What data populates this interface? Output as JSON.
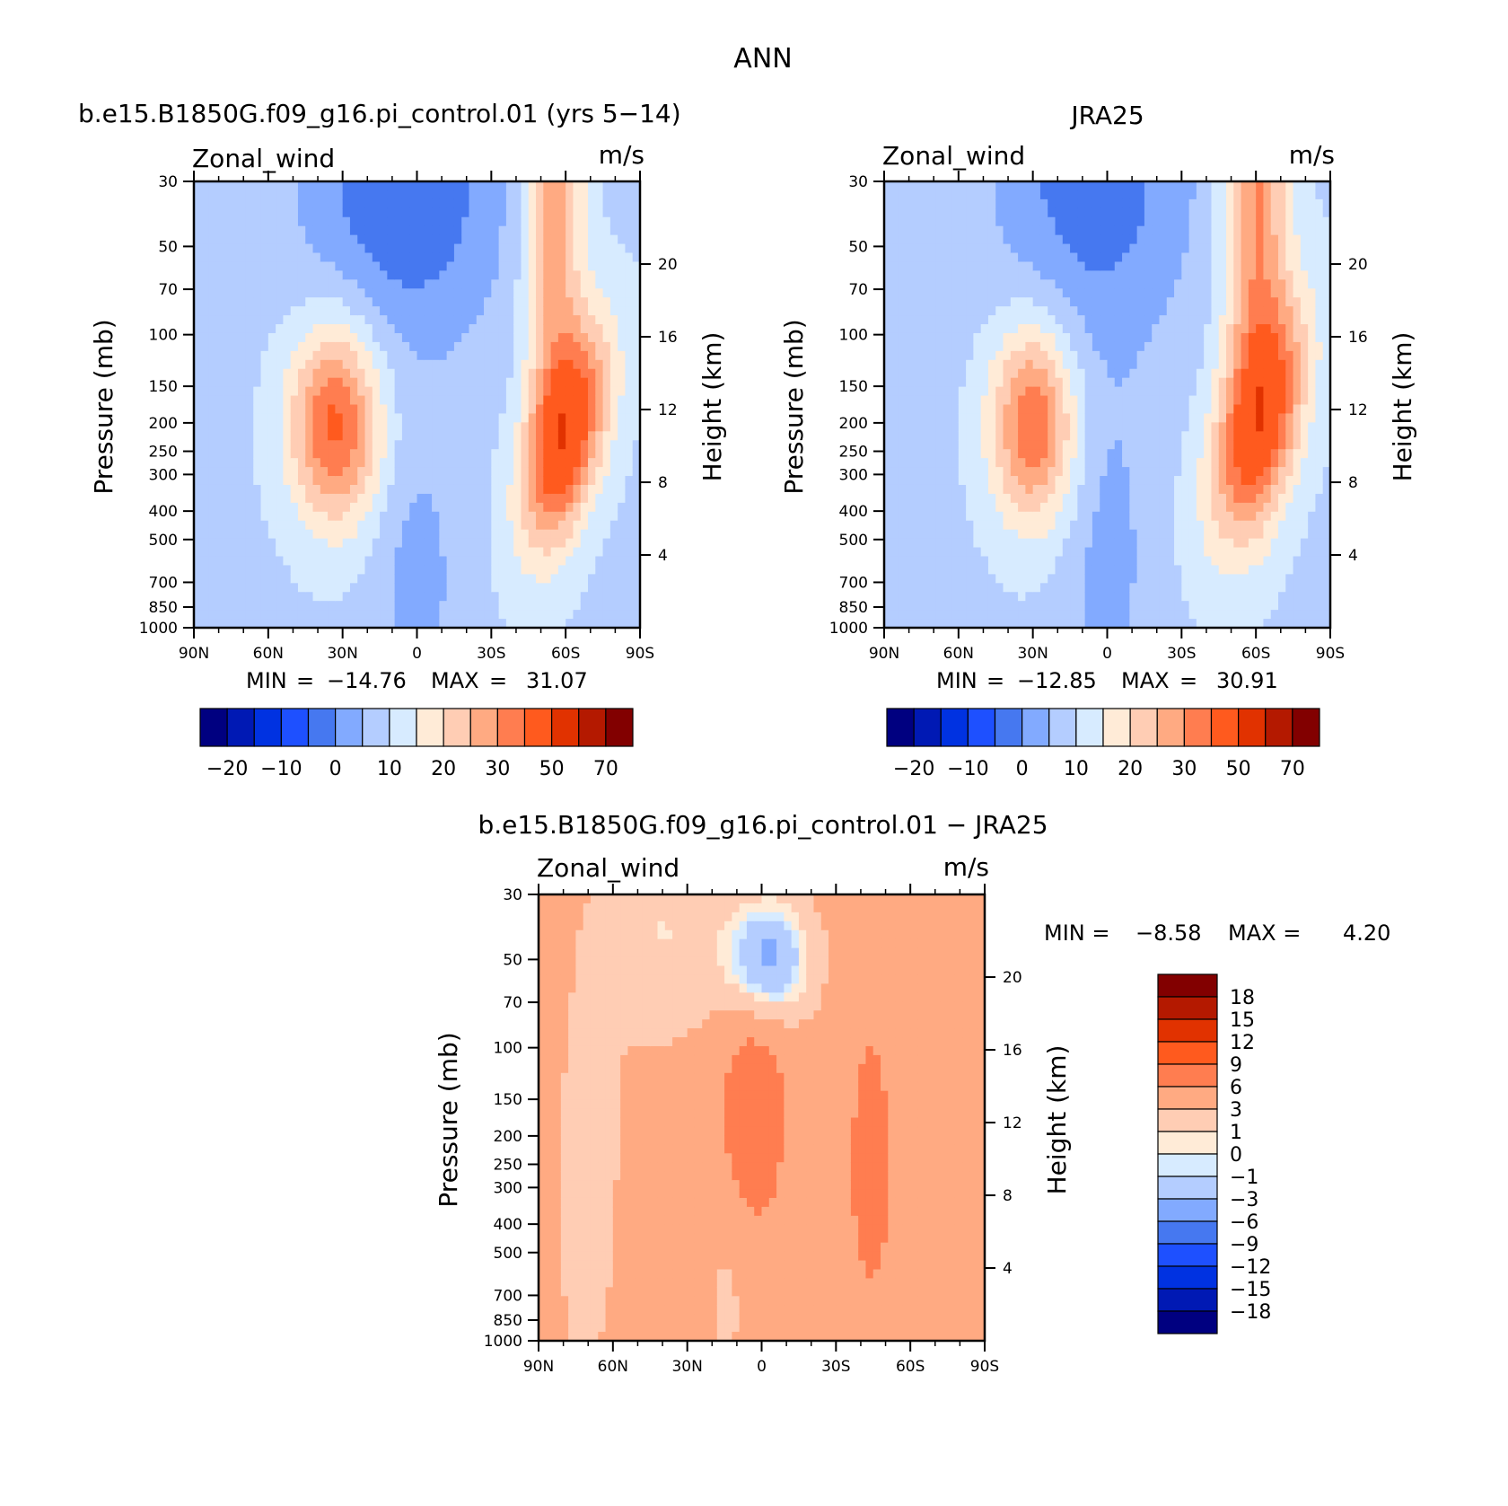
{
  "chart_data": {
    "type": "heatmap",
    "title": "ANN",
    "panels": [
      {
        "id": "model",
        "subtitle": "b.e15.B1850G.f09_g16.pi_control.01 (yrs 5−14)",
        "left_string": "Zonal_wind",
        "right_string": "m/s",
        "ylabel": "Pressure (mb)",
        "ylabel_right": "Height (km)",
        "min_label": "MIN",
        "min_value": "−14.76",
        "max_label": "MAX",
        "max_value": "31.07",
        "jets": [
          {
            "lat": 33,
            "p": 200,
            "speed": 28,
            "slat": 13,
            "sz": 0.55,
            "tilt": 0
          },
          {
            "lat": -45,
            "p": 220,
            "speed": 31,
            "slat": 11,
            "sz": 0.6,
            "tilt": -10
          },
          {
            "lat": -55,
            "p": 30,
            "speed": 22,
            "slat": 8,
            "sz": 1.3,
            "tilt": 0
          },
          {
            "lat": 5,
            "p": 30,
            "speed": -14,
            "slat": 28,
            "sz": 0.9,
            "tilt": 0
          },
          {
            "lat": 0,
            "p": 700,
            "speed": -6,
            "slat": 12,
            "sz": 0.8,
            "tilt": 0
          }
        ]
      },
      {
        "id": "obs",
        "subtitle": "JRA25",
        "left_string": "Zonal_wind",
        "right_string": "m/s",
        "ylabel": "Pressure (mb)",
        "ylabel_right": "Height (km)",
        "min_label": "MIN",
        "min_value": "−12.85",
        "max_label": "MAX",
        "max_value": "30.91",
        "jets": [
          {
            "lat": 30,
            "p": 200,
            "speed": 26,
            "slat": 12,
            "sz": 0.55,
            "tilt": 0
          },
          {
            "lat": -45,
            "p": 200,
            "speed": 29,
            "slat": 12,
            "sz": 0.65,
            "tilt": -10
          },
          {
            "lat": -60,
            "p": 30,
            "speed": 22,
            "slat": 9,
            "sz": 1.3,
            "tilt": 0
          },
          {
            "lat": 5,
            "p": 30,
            "speed": -12,
            "slat": 28,
            "sz": 0.9,
            "tilt": 0
          },
          {
            "lat": 0,
            "p": 600,
            "speed": -6,
            "slat": 12,
            "sz": 1.0,
            "tilt": 0
          }
        ]
      },
      {
        "id": "diff",
        "subtitle": "b.e15.B1850G.f09_g16.pi_control.01 − JRA25",
        "left_string": "Zonal_wind",
        "right_string": "m/s",
        "ylabel": "Pressure (mb)",
        "ylabel_right": "Height (km)",
        "min_label": "MIN =",
        "min_value": "−8.58",
        "max_label": "MAX =",
        "max_value": "4.20",
        "jets": [
          {
            "lat": -2,
            "p": 50,
            "speed": -8.6,
            "slat": 12,
            "sz": 0.35,
            "tilt": 0
          },
          {
            "lat": 40,
            "p": 40,
            "speed": -3,
            "slat": 18,
            "sz": 0.6,
            "tilt": 0
          },
          {
            "lat": 3,
            "p": 150,
            "speed": 4.2,
            "slat": 10,
            "sz": 0.8,
            "tilt": 0
          },
          {
            "lat": -44,
            "p": 250,
            "speed": 3,
            "slat": 8,
            "sz": 1.0,
            "tilt": 0
          },
          {
            "lat": -75,
            "p": 50,
            "speed": 2,
            "slat": 6,
            "sz": 1.2,
            "tilt": 0
          },
          {
            "lat": 35,
            "p": 850,
            "speed": 1.5,
            "slat": 12,
            "sz": 0.6,
            "tilt": 0
          },
          {
            "lat": 70,
            "p": 300,
            "speed": -2,
            "slat": 10,
            "sz": 1.2,
            "tilt": 0
          },
          {
            "lat": 15,
            "p": 700,
            "speed": -2,
            "slat": 8,
            "sz": 0.5,
            "tilt": 0
          }
        ]
      }
    ],
    "x_ticks": [
      "90N",
      "60N",
      "30N",
      "0",
      "30S",
      "60S",
      "90S"
    ],
    "x_tick_lats": [
      90,
      60,
      30,
      0,
      -30,
      -60,
      -90
    ],
    "pressure_ticks": [
      "30",
      "50",
      "70",
      "100",
      "150",
      "200",
      "250",
      "300",
      "400",
      "500",
      "700",
      "850",
      "1000"
    ],
    "pressure_values": [
      30,
      50,
      70,
      100,
      150,
      200,
      250,
      300,
      400,
      500,
      700,
      850,
      1000
    ],
    "height_ticks": [
      "4",
      "8",
      "12",
      "16",
      "20"
    ],
    "height_values": [
      4,
      8,
      12,
      16,
      20
    ],
    "top_colorbar": {
      "levels": [
        -25,
        -20,
        -15,
        -10,
        -5,
        0,
        5,
        10,
        15,
        20,
        25,
        30,
        40,
        50,
        60,
        70
      ],
      "labels": [
        "−20",
        "−10",
        "0",
        "10",
        "20",
        "30",
        "50",
        "70"
      ],
      "colors": [
        "#000080",
        "#0019b4",
        "#0032e1",
        "#1e50ff",
        "#4678f0",
        "#82aaff",
        "#b4cdff",
        "#d7ebff",
        "#ffebd7",
        "#ffcdb4",
        "#ffaa82",
        "#ff7d50",
        "#ff5a1e",
        "#e13200",
        "#b41900",
        "#820000"
      ]
    },
    "diff_colorbar": {
      "levels": [
        -18,
        -15,
        -12,
        -9,
        -6,
        -3,
        -1,
        0,
        1,
        3,
        6,
        9,
        12,
        15,
        18
      ],
      "labels": [
        "18",
        "15",
        "12",
        "9",
        "6",
        "3",
        "1",
        "0",
        "−1",
        "−3",
        "−6",
        "−9",
        "−12",
        "−15",
        "−18"
      ],
      "colors": [
        "#000080",
        "#0019b4",
        "#0032e1",
        "#1e50ff",
        "#4678f0",
        "#82aaff",
        "#b4cdff",
        "#d7ebff",
        "#ffebd7",
        "#ffcdb4",
        "#ffaa82",
        "#ff7d50",
        "#ff5a1e",
        "#e13200",
        "#b41900",
        "#820000"
      ]
    }
  }
}
